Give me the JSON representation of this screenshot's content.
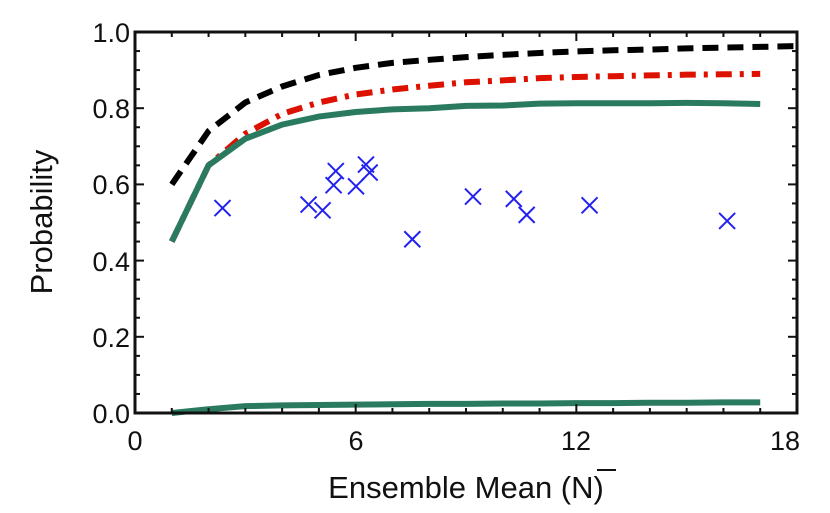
{
  "chart_data": {
    "type": "line",
    "xlabel": "Ensemble Mean (N)",
    "ylabel": "Probability",
    "xlim": [
      0,
      18
    ],
    "ylim": [
      0,
      1.0
    ],
    "xticks": [
      "0",
      "6",
      "12",
      "18"
    ],
    "yticks": [
      "0.0",
      "0.2",
      "0.4",
      "0.6",
      "0.8",
      "1.0"
    ],
    "grid": false,
    "series": [
      {
        "style": "dashed",
        "color": "#000000",
        "x": [
          1,
          2,
          3,
          4,
          5,
          6,
          7,
          8,
          9,
          10,
          11,
          12,
          13,
          14,
          15,
          16,
          17,
          18
        ],
        "y": [
          0.6,
          0.74,
          0.815,
          0.857,
          0.887,
          0.906,
          0.919,
          0.927,
          0.934,
          0.94,
          0.945,
          0.949,
          0.952,
          0.954,
          0.957,
          0.959,
          0.961,
          0.963
        ]
      },
      {
        "style": "dashdot",
        "color": "#dd1100",
        "x": [
          1,
          2,
          3,
          4,
          5,
          6,
          7,
          8,
          9,
          10,
          11,
          12,
          13,
          14,
          15,
          16,
          17
        ],
        "y": [
          0.45,
          0.65,
          0.733,
          0.785,
          0.815,
          0.836,
          0.849,
          0.859,
          0.868,
          0.873,
          0.879,
          0.882,
          0.884,
          0.886,
          0.888,
          0.889,
          0.89
        ]
      },
      {
        "style": "solid",
        "color": "#2a7a60",
        "x": [
          1,
          2,
          3,
          4,
          5,
          6,
          7,
          8,
          9,
          10,
          11,
          12,
          13,
          14,
          15,
          16,
          17
        ],
        "y": [
          0.45,
          0.65,
          0.72,
          0.757,
          0.778,
          0.79,
          0.797,
          0.8,
          0.806,
          0.807,
          0.812,
          0.813,
          0.813,
          0.813,
          0.814,
          0.813,
          0.811
        ]
      },
      {
        "style": "solid",
        "color": "#2a7a60",
        "x": [
          1,
          2,
          3,
          4,
          5,
          6,
          7,
          8,
          9,
          10,
          11,
          12,
          13,
          14,
          15,
          16,
          17
        ],
        "y": [
          0.0,
          0.01,
          0.018,
          0.02,
          0.021,
          0.022,
          0.023,
          0.024,
          0.024,
          0.025,
          0.025,
          0.026,
          0.026,
          0.027,
          0.027,
          0.028,
          0.028
        ]
      },
      {
        "style": "scatter",
        "marker": "x",
        "color": "#2222ee",
        "x": [
          2.38,
          4.72,
          5.1,
          5.4,
          5.46,
          6.01,
          6.28,
          6.38,
          7.54,
          9.19,
          10.3,
          10.65,
          12.36,
          16.1
        ],
        "y": [
          0.538,
          0.547,
          0.532,
          0.598,
          0.635,
          0.595,
          0.652,
          0.631,
          0.456,
          0.568,
          0.562,
          0.52,
          0.545,
          0.504
        ]
      }
    ]
  }
}
